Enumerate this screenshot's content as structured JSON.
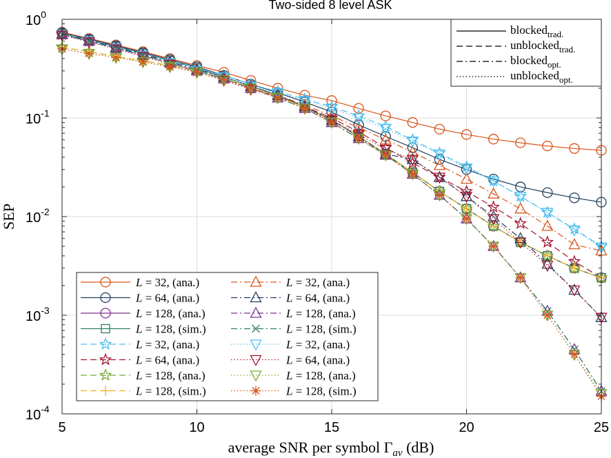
{
  "chart_data": {
    "type": "line",
    "title": "Two-sided 8 level ASK",
    "xlabel": "average SNR per symbol Γav (dB)",
    "xlabel_parts": {
      "main": "average SNR per symbol Γ",
      "sub": "av",
      "unit": " (dB)"
    },
    "ylabel": "SEP",
    "xlim": [
      5,
      25
    ],
    "ylim": [
      0.0001,
      1
    ],
    "yscale": "log",
    "grid": true,
    "x_ticks": [
      "5",
      "10",
      "15",
      "20",
      "25"
    ],
    "y_ticks": [
      {
        "base": "10",
        "exp": "0"
      },
      {
        "base": "10",
        "exp": "-1"
      },
      {
        "base": "10",
        "exp": "-2"
      },
      {
        "base": "10",
        "exp": "-3"
      },
      {
        "base": "10",
        "exp": "-4"
      }
    ],
    "style_legend": {
      "placement": "top-right",
      "entries": [
        {
          "main": "blocked",
          "sub": "trad.",
          "dash": "solid"
        },
        {
          "main": "unblocked",
          "sub": "trad.",
          "dash": "dashed"
        },
        {
          "main": "blocked",
          "sub": "opt.",
          "dash": "dashdot"
        },
        {
          "main": "unblocked",
          "sub": "opt.",
          "dash": "dotted"
        }
      ]
    },
    "legend": {
      "placement": "bottom-left",
      "entries": [
        {
          "L": "32",
          "kind": "ana.",
          "color": "#d95319",
          "dash": "solid",
          "marker": "circle"
        },
        {
          "L": "64",
          "kind": "ana.",
          "color": "#1f3f5f",
          "dash": "solid",
          "marker": "circle"
        },
        {
          "L": "128",
          "kind": "ana.",
          "color": "#7e2f8e",
          "dash": "solid",
          "marker": "circle"
        },
        {
          "L": "128",
          "kind": "sim.",
          "color": "#2e7d5b",
          "dash": "solid",
          "marker": "square"
        },
        {
          "L": "32",
          "kind": "ana.",
          "color": "#4dbeee",
          "dash": "dashed",
          "marker": "star"
        },
        {
          "L": "64",
          "kind": "ana.",
          "color": "#a2142f",
          "dash": "dashed",
          "marker": "star"
        },
        {
          "L": "128",
          "kind": "ana.",
          "color": "#77ac30",
          "dash": "dashed",
          "marker": "star"
        },
        {
          "L": "128",
          "kind": "sim.",
          "color": "#edb120",
          "dash": "dashed",
          "marker": "plus"
        },
        {
          "L": "32",
          "kind": "ana.",
          "color": "#d95319",
          "dash": "dashdot",
          "marker": "triangle-up"
        },
        {
          "L": "64",
          "kind": "ana.",
          "color": "#1f3f5f",
          "dash": "dashdot",
          "marker": "triangle-up"
        },
        {
          "L": "128",
          "kind": "ana.",
          "color": "#7e2f8e",
          "dash": "dashdot",
          "marker": "triangle-up"
        },
        {
          "L": "128",
          "kind": "sim.",
          "color": "#2e7d5b",
          "dash": "dashdot",
          "marker": "x"
        },
        {
          "L": "32",
          "kind": "ana.",
          "color": "#4dbeee",
          "dash": "dotted",
          "marker": "triangle-down"
        },
        {
          "L": "64",
          "kind": "ana.",
          "color": "#a2142f",
          "dash": "dotted",
          "marker": "triangle-down"
        },
        {
          "L": "128",
          "kind": "ana.",
          "color": "#77ac30",
          "dash": "dotted",
          "marker": "triangle-down"
        },
        {
          "L": "128",
          "kind": "sim.",
          "color": "#d95319",
          "dash": "dotted",
          "marker": "asterisk"
        }
      ]
    },
    "x": [
      5,
      6,
      7,
      8,
      9,
      10,
      11,
      12,
      13,
      14,
      15,
      16,
      17,
      18,
      19,
      20,
      21,
      22,
      23,
      24,
      25
    ],
    "series": [
      {
        "color": "#d95319",
        "dash": "solid",
        "marker": "circle",
        "values": [
          0.74,
          0.64,
          0.55,
          0.47,
          0.4,
          0.34,
          0.29,
          0.24,
          0.2,
          0.17,
          0.15,
          0.125,
          0.105,
          0.09,
          0.077,
          0.068,
          0.061,
          0.056,
          0.052,
          0.049,
          0.047
        ]
      },
      {
        "color": "#1f3f5f",
        "dash": "solid",
        "marker": "circle",
        "values": [
          0.73,
          0.63,
          0.54,
          0.46,
          0.39,
          0.33,
          0.27,
          0.22,
          0.18,
          0.145,
          0.115,
          0.085,
          0.065,
          0.05,
          0.038,
          0.03,
          0.024,
          0.02,
          0.0175,
          0.0155,
          0.014
        ]
      },
      {
        "color": "#7e2f8e",
        "dash": "solid",
        "marker": "circle",
        "values": [
          0.72,
          0.62,
          0.53,
          0.45,
          0.38,
          0.32,
          0.26,
          0.21,
          0.17,
          0.13,
          0.095,
          0.065,
          0.043,
          0.028,
          0.018,
          0.012,
          0.008,
          0.0055,
          0.004,
          0.003,
          0.0024
        ]
      },
      {
        "color": "#2e7d5b",
        "dash": "solid",
        "marker": "square",
        "values": [
          0.72,
          0.62,
          0.53,
          0.45,
          0.38,
          0.32,
          0.26,
          0.21,
          0.17,
          0.13,
          0.095,
          0.065,
          0.043,
          0.028,
          0.018,
          0.012,
          0.008,
          0.0055,
          0.004,
          0.003,
          0.0024
        ]
      },
      {
        "color": "#4dbeee",
        "dash": "dashed",
        "marker": "star",
        "values": [
          0.72,
          0.62,
          0.53,
          0.45,
          0.38,
          0.32,
          0.27,
          0.22,
          0.185,
          0.155,
          0.13,
          0.105,
          0.082,
          0.06,
          0.044,
          0.032,
          0.023,
          0.016,
          0.011,
          0.0075,
          0.005
        ]
      },
      {
        "color": "#a2142f",
        "dash": "dashed",
        "marker": "star",
        "values": [
          0.7,
          0.6,
          0.51,
          0.43,
          0.36,
          0.3,
          0.25,
          0.2,
          0.165,
          0.13,
          0.1,
          0.072,
          0.05,
          0.035,
          0.025,
          0.018,
          0.0125,
          0.0085,
          0.0055,
          0.0035,
          0.0024
        ]
      },
      {
        "color": "#77ac30",
        "dash": "dashed",
        "marker": "star",
        "values": [
          0.52,
          0.47,
          0.42,
          0.38,
          0.34,
          0.3,
          0.25,
          0.205,
          0.165,
          0.13,
          0.095,
          0.065,
          0.043,
          0.028,
          0.018,
          0.012,
          0.008,
          0.0055,
          0.004,
          0.003,
          0.0024
        ]
      },
      {
        "color": "#edb120",
        "dash": "dashed",
        "marker": "plus",
        "values": [
          0.52,
          0.47,
          0.42,
          0.38,
          0.34,
          0.3,
          0.25,
          0.205,
          0.165,
          0.13,
          0.095,
          0.065,
          0.043,
          0.028,
          0.018,
          0.012,
          0.008,
          0.0055,
          0.004,
          0.003,
          0.0024
        ]
      },
      {
        "color": "#d95319",
        "dash": "dashdot",
        "marker": "triangle-up",
        "values": [
          0.71,
          0.61,
          0.52,
          0.44,
          0.37,
          0.31,
          0.26,
          0.21,
          0.17,
          0.135,
          0.105,
          0.08,
          0.06,
          0.045,
          0.033,
          0.024,
          0.017,
          0.012,
          0.008,
          0.0052,
          0.0045
        ]
      },
      {
        "color": "#1f3f5f",
        "dash": "dashdot",
        "marker": "triangle-up",
        "values": [
          0.71,
          0.61,
          0.52,
          0.44,
          0.37,
          0.31,
          0.26,
          0.21,
          0.17,
          0.13,
          0.095,
          0.065,
          0.043,
          0.038,
          0.025,
          0.016,
          0.01,
          0.006,
          0.0033,
          0.0018,
          0.00095
        ]
      },
      {
        "color": "#7e2f8e",
        "dash": "dashdot",
        "marker": "triangle-up",
        "values": [
          0.7,
          0.6,
          0.51,
          0.43,
          0.36,
          0.3,
          0.25,
          0.2,
          0.16,
          0.125,
          0.09,
          0.062,
          0.042,
          0.027,
          0.0165,
          0.0095,
          0.005,
          0.0024,
          0.0011,
          0.00045,
          0.00017
        ]
      },
      {
        "color": "#2e7d5b",
        "dash": "dashdot",
        "marker": "x",
        "values": [
          0.7,
          0.6,
          0.51,
          0.43,
          0.36,
          0.3,
          0.25,
          0.2,
          0.16,
          0.125,
          0.09,
          0.062,
          0.042,
          0.027,
          0.0165,
          0.0095,
          0.005,
          0.0024,
          0.0011,
          0.00045,
          0.00017
        ]
      },
      {
        "color": "#4dbeee",
        "dash": "dotted",
        "marker": "triangle-down",
        "values": [
          0.7,
          0.6,
          0.51,
          0.43,
          0.36,
          0.3,
          0.26,
          0.21,
          0.18,
          0.15,
          0.125,
          0.1,
          0.078,
          0.058,
          0.043,
          0.031,
          0.023,
          0.016,
          0.011,
          0.0073,
          0.0049
        ]
      },
      {
        "color": "#a2142f",
        "dash": "dotted",
        "marker": "triangle-down",
        "values": [
          0.69,
          0.59,
          0.5,
          0.42,
          0.35,
          0.29,
          0.24,
          0.195,
          0.16,
          0.125,
          0.095,
          0.068,
          0.048,
          0.038,
          0.025,
          0.016,
          0.0095,
          0.0055,
          0.0032,
          0.0018,
          0.00095
        ]
      },
      {
        "color": "#77ac30",
        "dash": "dotted",
        "marker": "triangle-down",
        "values": [
          0.5,
          0.45,
          0.41,
          0.37,
          0.33,
          0.29,
          0.245,
          0.2,
          0.16,
          0.125,
          0.09,
          0.062,
          0.042,
          0.027,
          0.0165,
          0.0095,
          0.005,
          0.0024,
          0.001,
          0.0004,
          0.00016
        ]
      },
      {
        "color": "#d95319",
        "dash": "dotted",
        "marker": "asterisk",
        "values": [
          0.5,
          0.45,
          0.41,
          0.37,
          0.33,
          0.29,
          0.245,
          0.2,
          0.16,
          0.125,
          0.09,
          0.062,
          0.042,
          0.027,
          0.0165,
          0.0095,
          0.005,
          0.0024,
          0.001,
          0.0004,
          0.00015
        ]
      }
    ]
  }
}
